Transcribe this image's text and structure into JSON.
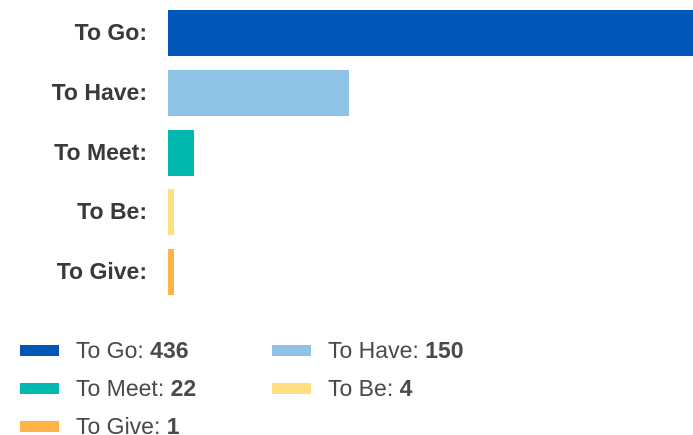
{
  "chart_data": {
    "type": "bar",
    "orientation": "horizontal",
    "categories": [
      "To Go:",
      "To Have:",
      "To Meet:",
      "To Be:",
      "To Give:"
    ],
    "values": [
      436,
      150,
      22,
      4,
      1
    ],
    "colors": [
      "#0057B8",
      "#8EC3E6",
      "#00B8AE",
      "#FFDD80",
      "#FFB347"
    ],
    "legend": {
      "placement": "bottom-left",
      "entries": [
        {
          "name": "To Go: ",
          "value": "436"
        },
        {
          "name": "To Have: ",
          "value": "150"
        },
        {
          "name": "To Meet: ",
          "value": "22"
        },
        {
          "name": "To Be: ",
          "value": "4"
        },
        {
          "name": "To Give: ",
          "value": "1"
        }
      ]
    },
    "grid": false,
    "axes_visible": false
  }
}
